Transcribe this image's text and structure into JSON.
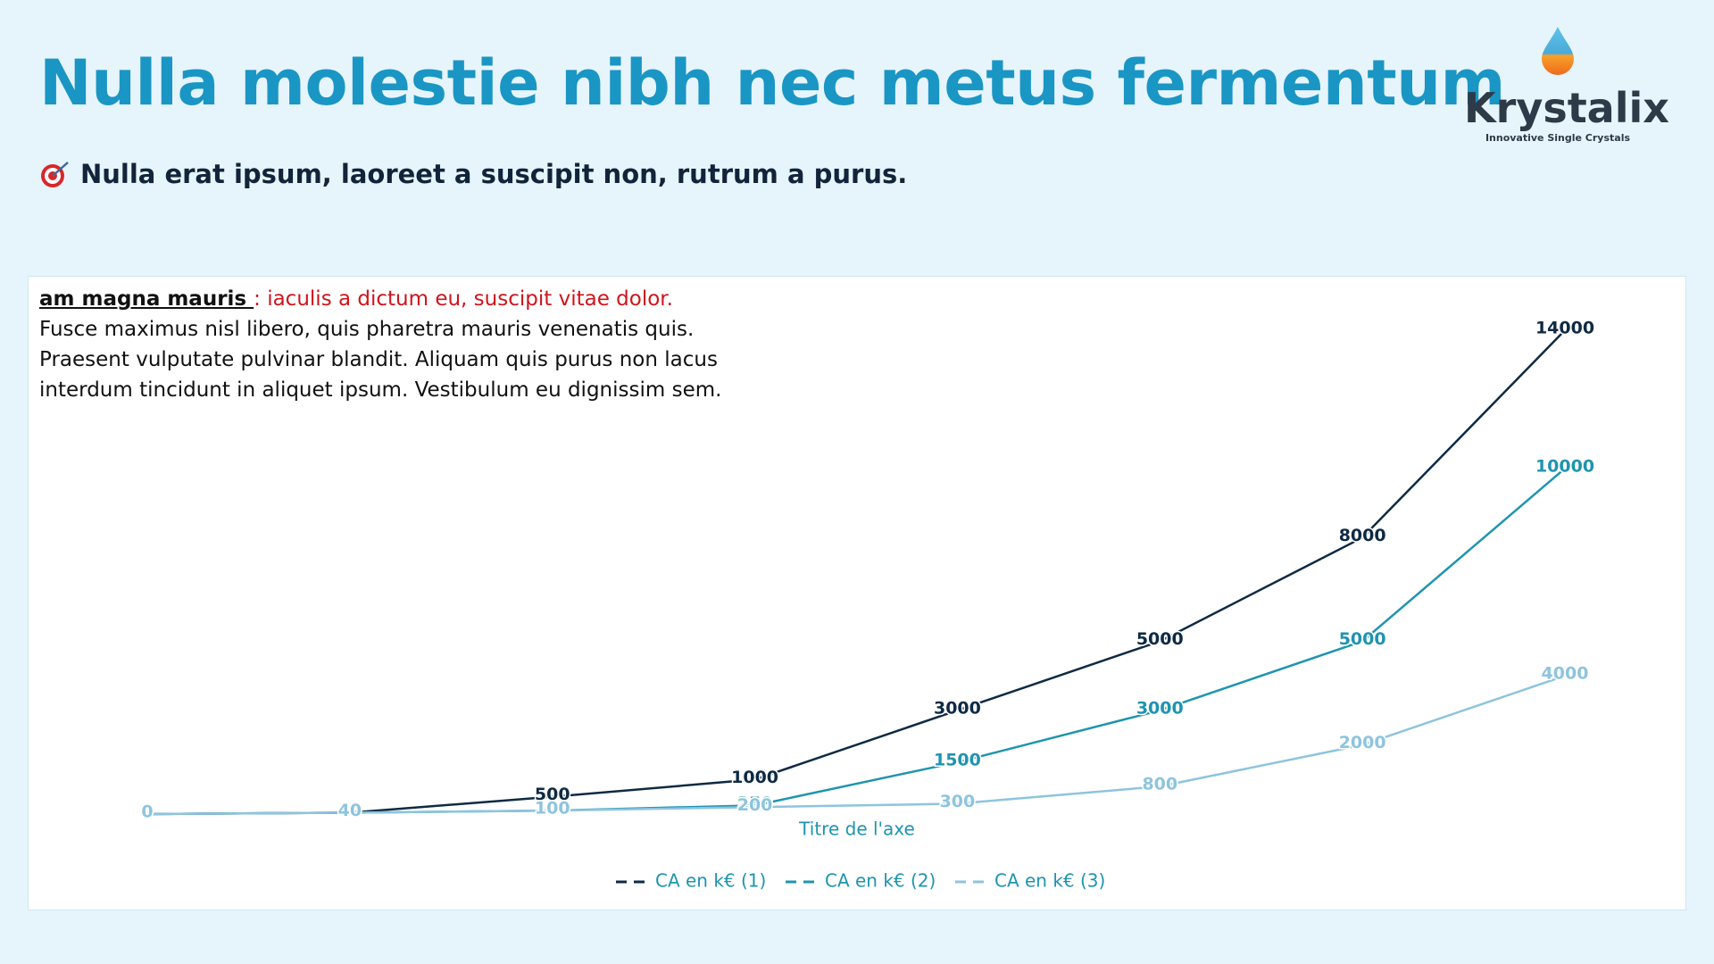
{
  "header": {
    "title": "Nulla molestie nibh nec metus fermentum",
    "subtitle": "Nulla erat ipsum, laoreet a suscipit non, rutrum a purus."
  },
  "logo": {
    "name": "Krystalix",
    "tagline": "Innovative Single Crystals"
  },
  "note": {
    "heading": "am magna mauris ",
    "highlight": ": iaculis a dictum eu, suscipit vitae dolor.",
    "body": [
      "Fusce maximus nisl libero, quis pharetra mauris venenatis quis.",
      "Praesent vulputate pulvinar blandit. Aliquam quis purus non lacus",
      "interdum tincidunt in aliquet ipsum. Vestibulum eu dignissim sem."
    ]
  },
  "chart_data": {
    "type": "line",
    "x_label": "Titre de l'axe",
    "categories": [
      null,
      null,
      null,
      null,
      null,
      null,
      null,
      null
    ],
    "series": [
      {
        "name": "CA en k€ (1)",
        "color": "#0e2a44",
        "values": [
          0,
          40,
          500,
          1000,
          3000,
          5000,
          8000,
          14000
        ]
      },
      {
        "name": "CA en k€ (2)",
        "color": "#1e94b0",
        "values": [
          0,
          40,
          100,
          250,
          1500,
          3000,
          5000,
          10000
        ]
      },
      {
        "name": "CA en k€  (3)",
        "color": "#8ec4de",
        "values": [
          0,
          40,
          100,
          200,
          300,
          800,
          2000,
          4000
        ]
      }
    ],
    "ylim": [
      0,
      14000
    ],
    "legend": "bottom",
    "data_labels": true
  }
}
